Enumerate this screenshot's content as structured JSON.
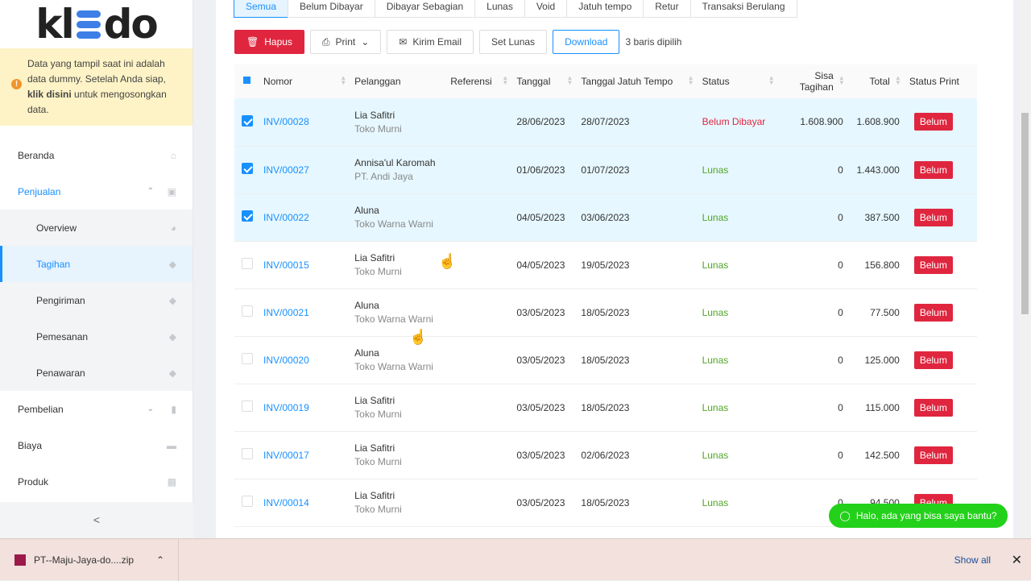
{
  "sidebar": {
    "logo": "kledo",
    "notice_1": "Data yang tampil saat ini adalah data dummy. Setelah Anda siap, ",
    "notice_link": "klik disini",
    "notice_2": " untuk mengosongkan data.",
    "items": [
      {
        "label": "Beranda",
        "icon": "home-icon"
      },
      {
        "label": "Penjualan",
        "icon": "basket-icon"
      },
      {
        "label": "Overview",
        "icon": "pie-chart-icon"
      },
      {
        "label": "Tagihan",
        "icon": "tag-icon"
      },
      {
        "label": "Pengiriman",
        "icon": "tag-icon"
      },
      {
        "label": "Pemesanan",
        "icon": "tag-icon"
      },
      {
        "label": "Penawaran",
        "icon": "tag-icon"
      },
      {
        "label": "Pembelian",
        "icon": "shopping-bag-icon"
      },
      {
        "label": "Biaya",
        "icon": "card-icon"
      },
      {
        "label": "Produk",
        "icon": "box-icon"
      }
    ],
    "collapse": "<"
  },
  "tabs": [
    "Semua",
    "Belum Dibayar",
    "Dibayar Sebagian",
    "Lunas",
    "Void",
    "Jatuh tempo",
    "Retur",
    "Transaksi Berulang"
  ],
  "toolbar": {
    "hapus": "Hapus",
    "print": "Print",
    "kirim_email": "Kirim Email",
    "set_lunas": "Set Lunas",
    "download": "Download",
    "selected": "3 baris dipilih"
  },
  "columns": [
    "Nomor",
    "Pelanggan",
    "Referensi",
    "Tanggal",
    "Tanggal Jatuh Tempo",
    "Status",
    "Sisa Tagihan",
    "Total",
    "Status Print"
  ],
  "rows": [
    {
      "checked": true,
      "nomor": "INV/00028",
      "nama": "Lia Safitri",
      "perusahaan": "Toko Murni",
      "referensi": "",
      "tanggal": "28/06/2023",
      "jatuh_tempo": "28/07/2023",
      "status": "Belum Dibayar",
      "sisa": "1.608.900",
      "total": "1.608.900",
      "print": "Belum"
    },
    {
      "checked": true,
      "nomor": "INV/00027",
      "nama": "Annisa'ul Karomah",
      "perusahaan": "PT. Andi Jaya",
      "referensi": "",
      "tanggal": "01/06/2023",
      "jatuh_tempo": "01/07/2023",
      "status": "Lunas",
      "sisa": "0",
      "total": "1.443.000",
      "print": "Belum"
    },
    {
      "checked": true,
      "nomor": "INV/00022",
      "nama": "Aluna",
      "perusahaan": "Toko Warna Warni",
      "referensi": "",
      "tanggal": "04/05/2023",
      "jatuh_tempo": "03/06/2023",
      "status": "Lunas",
      "sisa": "0",
      "total": "387.500",
      "print": "Belum"
    },
    {
      "checked": false,
      "nomor": "INV/00015",
      "nama": "Lia Safitri",
      "perusahaan": "Toko Murni",
      "referensi": "",
      "tanggal": "04/05/2023",
      "jatuh_tempo": "19/05/2023",
      "status": "Lunas",
      "sisa": "0",
      "total": "156.800",
      "print": "Belum"
    },
    {
      "checked": false,
      "nomor": "INV/00021",
      "nama": "Aluna",
      "perusahaan": "Toko Warna Warni",
      "referensi": "",
      "tanggal": "03/05/2023",
      "jatuh_tempo": "18/05/2023",
      "status": "Lunas",
      "sisa": "0",
      "total": "77.500",
      "print": "Belum"
    },
    {
      "checked": false,
      "nomor": "INV/00020",
      "nama": "Aluna",
      "perusahaan": "Toko Warna Warni",
      "referensi": "",
      "tanggal": "03/05/2023",
      "jatuh_tempo": "18/05/2023",
      "status": "Lunas",
      "sisa": "0",
      "total": "125.000",
      "print": "Belum"
    },
    {
      "checked": false,
      "nomor": "INV/00019",
      "nama": "Lia Safitri",
      "perusahaan": "Toko Murni",
      "referensi": "",
      "tanggal": "03/05/2023",
      "jatuh_tempo": "18/05/2023",
      "status": "Lunas",
      "sisa": "0",
      "total": "115.000",
      "print": "Belum"
    },
    {
      "checked": false,
      "nomor": "INV/00017",
      "nama": "Lia Safitri",
      "perusahaan": "Toko Murni",
      "referensi": "",
      "tanggal": "03/05/2023",
      "jatuh_tempo": "02/06/2023",
      "status": "Lunas",
      "sisa": "0",
      "total": "142.500",
      "print": "Belum"
    },
    {
      "checked": false,
      "nomor": "INV/00014",
      "nama": "Lia Safitri",
      "perusahaan": "Toko Murni",
      "referensi": "",
      "tanggal": "03/05/2023",
      "jatuh_tempo": "18/05/2023",
      "status": "Lunas",
      "sisa": "0",
      "total": "94.500",
      "print": "Belum"
    }
  ],
  "chat": "Halo, ada yang bisa saya bantu?",
  "download_bar": {
    "file": "PT--Maju-Jaya-do....zip",
    "show_all": "Show all"
  },
  "colors": {
    "accent": "#1890ff",
    "danger": "#e0263f",
    "success": "#52a529",
    "whatsapp": "#23d11a"
  }
}
